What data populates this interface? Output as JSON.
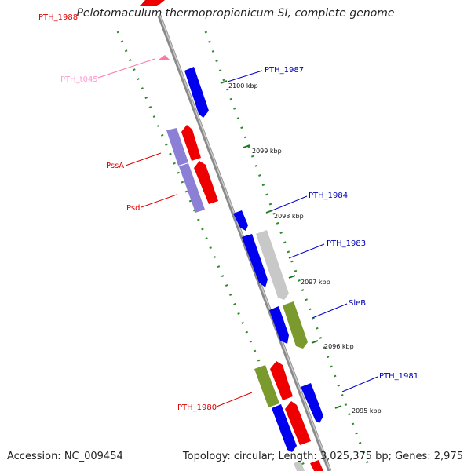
{
  "title": "Pelotomaculum thermopropionicum SI, complete genome",
  "footer": {
    "accession": "Accession: NC_009454",
    "summary": "Topology: circular; Length: 3,025,375 bp; Genes: 2,975"
  },
  "colors": {
    "forward_cds": "#0000ee",
    "reverse_cds": "#ee0000",
    "rna": "#ff99cc",
    "orf_light": "#8c7fd6",
    "orf_gray": "#c8c8c8",
    "orf_olive": "#7a9a2e",
    "backbone": "#8a8a8a",
    "dashes": "#2e8b2e"
  },
  "features": [
    {
      "label": "PTH_1988",
      "strand": "reverse",
      "color": "#dd0000"
    },
    {
      "label": "PTH_t045",
      "strand": "reverse",
      "color": "#ff99cc"
    },
    {
      "label": "PTH_1987",
      "strand": "forward",
      "color": "#0000bb"
    },
    {
      "label": "PssA",
      "strand": "reverse",
      "color": "#dd0000"
    },
    {
      "label": "Psd",
      "strand": "reverse",
      "color": "#dd0000"
    },
    {
      "label": "PTH_1984",
      "strand": "forward",
      "color": "#0000bb"
    },
    {
      "label": "PTH_1983",
      "strand": "forward",
      "color": "#0000bb"
    },
    {
      "label": "SleB",
      "strand": "forward",
      "color": "#0000bb"
    },
    {
      "label": "PTH_1981",
      "strand": "forward",
      "color": "#0000bb"
    },
    {
      "label": "PTH_1980",
      "strand": "reverse",
      "color": "#dd0000"
    }
  ],
  "ticks": [
    "2100 kbp",
    "2099 kbp",
    "2098 kbp",
    "2097 kbp",
    "2096 kbp",
    "2095 kbp"
  ]
}
